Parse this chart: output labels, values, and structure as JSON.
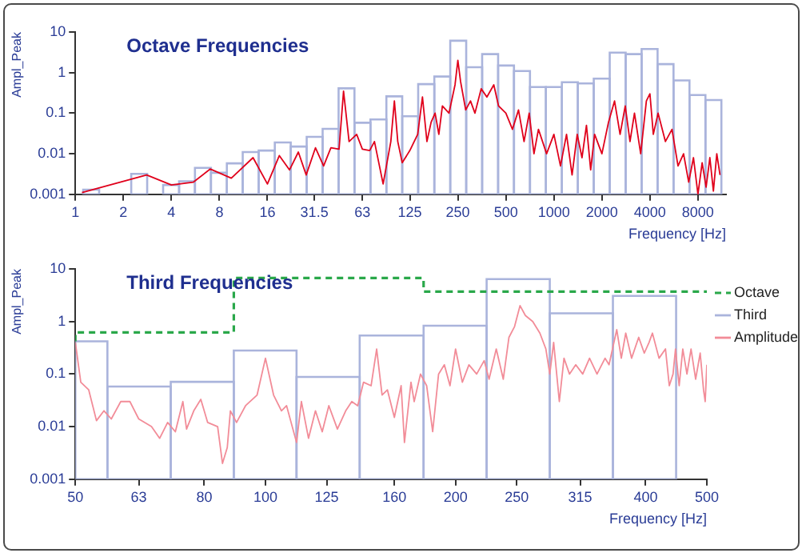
{
  "chart_data": [
    {
      "type": "histogram",
      "title": "Octave Frequencies",
      "xlabel": "Frequency [Hz]",
      "ylabel": "Ampl_Peak",
      "log": "xy",
      "grid": false,
      "legend": false,
      "xlim": [
        1,
        12000
      ],
      "xticks": [
        1,
        2,
        4,
        8,
        16,
        31.5,
        63,
        125,
        250,
        500,
        1000,
        2000,
        4000,
        8000
      ],
      "ylim": [
        0.001,
        10
      ],
      "yticks": [
        0.001,
        0.01,
        0.1,
        1,
        10
      ],
      "series": [
        {
          "color": "#aab4dc",
          "bins": [
            1.12,
            1.41,
            1.78,
            2.24,
            2.82,
            3.55,
            4.47,
            5.62,
            7.08,
            8.91,
            11.2,
            14.1,
            17.8,
            22.4,
            28.2,
            35.5,
            44.7,
            56.2,
            70.8,
            89.1,
            112,
            141,
            178,
            224,
            282,
            355,
            447,
            562,
            708,
            891,
            1122,
            1413,
            1778,
            2239,
            2818,
            3548,
            4467,
            5623,
            7079,
            8913,
            11220
          ],
          "values": [
            0.0013,
            null,
            null,
            0.0032,
            null,
            0.0017,
            0.0021,
            0.0045,
            0.0034,
            0.0058,
            0.011,
            0.012,
            0.019,
            0.015,
            0.026,
            0.041,
            0.41,
            0.058,
            0.07,
            0.26,
            0.084,
            0.52,
            0.8,
            6.1,
            1.36,
            2.85,
            1.49,
            1.09,
            0.44,
            0.44,
            0.58,
            0.54,
            0.71,
            3.1,
            2.85,
            3.8,
            1.62,
            0.64,
            0.28,
            0.21
          ]
        },
        {
          "type": "line",
          "color": "#e0001b",
          "x": [
            1.1,
            2.8,
            4,
            5.5,
            7,
            9.5,
            13,
            16,
            19,
            22,
            25,
            28,
            32,
            36,
            40,
            45,
            48,
            52,
            58,
            63,
            70,
            75,
            85,
            95,
            100,
            105,
            112,
            125,
            140,
            150,
            160,
            170,
            180,
            190,
            200,
            220,
            240,
            250,
            260,
            280,
            300,
            320,
            350,
            380,
            420,
            450,
            500,
            550,
            600,
            650,
            700,
            750,
            800,
            900,
            1000,
            1100,
            1200,
            1300,
            1400,
            1500,
            1600,
            1700,
            1800,
            2000,
            2200,
            2400,
            2600,
            2800,
            3000,
            3200,
            3500,
            3800,
            4000,
            4200,
            4500,
            5000,
            5500,
            6000,
            6500,
            7000,
            7500,
            8000,
            8500,
            9000,
            9500,
            10000,
            10500,
            11000
          ],
          "values": [
            0.0011,
            0.003,
            0.0017,
            0.002,
            0.0042,
            0.0025,
            0.008,
            0.0018,
            0.009,
            0.004,
            0.011,
            0.003,
            0.014,
            0.005,
            0.014,
            0.013,
            0.35,
            0.02,
            0.03,
            0.013,
            0.012,
            0.02,
            0.0018,
            0.02,
            0.2,
            0.02,
            0.006,
            0.012,
            0.03,
            0.25,
            0.02,
            0.06,
            0.1,
            0.03,
            0.15,
            0.1,
            0.5,
            2,
            0.6,
            0.12,
            0.2,
            0.1,
            0.4,
            0.25,
            0.5,
            0.15,
            0.1,
            0.04,
            0.12,
            0.02,
            0.1,
            0.01,
            0.04,
            0.01,
            0.03,
            0.005,
            0.03,
            0.003,
            0.03,
            0.008,
            0.05,
            0.004,
            0.03,
            0.01,
            0.06,
            0.2,
            0.03,
            0.15,
            0.02,
            0.1,
            0.01,
            0.2,
            0.3,
            0.03,
            0.1,
            0.02,
            0.04,
            0.005,
            0.01,
            0.002,
            0.008,
            0.001,
            0.006,
            0.0015,
            0.008,
            0.0012,
            0.01,
            0.003
          ]
        }
      ]
    },
    {
      "type": "histogram",
      "title": "Third Frequencies",
      "xlabel": "Frequency [Hz]",
      "ylabel": "Ampl_Peak",
      "log": "xy",
      "grid": false,
      "legend": "right",
      "xlim": [
        50,
        500
      ],
      "xticks": [
        50,
        63,
        80,
        100,
        125,
        160,
        200,
        250,
        315,
        400,
        500
      ],
      "ylim": [
        0.001,
        10
      ],
      "yticks": [
        0.001,
        0.01,
        0.1,
        1,
        10
      ],
      "series": [
        {
          "type": "step",
          "name": "Octave",
          "color": "#2aa84a",
          "line_style": "dashed",
          "x": [
            50,
            89.1,
            178,
            355,
            500
          ],
          "values": [
            0.42,
            0.62,
            6.7,
            3.7,
            3.7
          ]
        },
        {
          "name": "Third",
          "color": "#aab4dc",
          "bins": [
            50,
            56.2,
            70.8,
            89.1,
            112,
            141,
            178,
            224,
            282,
            355,
            447
          ],
          "values": [
            0.42,
            0.058,
            0.071,
            0.28,
            0.088,
            0.54,
            0.83,
            6.4,
            1.43,
            3.06
          ]
        },
        {
          "type": "line",
          "name": "Amplitude",
          "color": "#f28c98",
          "x": [
            50,
            51,
            52.5,
            54,
            55.5,
            57,
            59,
            61,
            63,
            66,
            68,
            70,
            72,
            74,
            75,
            77,
            79,
            81,
            84,
            85.5,
            87,
            88,
            90,
            93,
            97,
            100,
            103,
            106,
            108,
            112,
            114,
            117,
            120,
            123,
            126,
            130,
            134,
            137,
            140,
            143,
            147,
            150,
            153,
            156,
            160,
            164,
            166,
            170,
            172,
            176,
            180,
            184,
            188,
            192,
            196,
            200,
            205,
            210,
            216,
            222,
            226,
            232,
            238,
            243,
            248,
            253,
            258,
            265,
            272,
            278,
            282,
            286,
            292,
            297,
            303,
            310,
            318,
            326,
            335,
            345,
            350,
            360,
            366,
            372,
            380,
            390,
            398,
            405,
            410,
            420,
            430,
            436,
            442,
            446,
            452,
            458,
            465,
            472,
            480,
            488,
            494,
            497,
            500
          ],
          "values": [
            0.4,
            0.07,
            0.05,
            0.013,
            0.02,
            0.014,
            0.03,
            0.03,
            0.014,
            0.01,
            0.006,
            0.012,
            0.008,
            0.03,
            0.009,
            0.02,
            0.033,
            0.012,
            0.01,
            0.002,
            0.004,
            0.02,
            0.012,
            0.025,
            0.04,
            0.2,
            0.04,
            0.02,
            0.025,
            0.005,
            0.03,
            0.006,
            0.02,
            0.008,
            0.025,
            0.009,
            0.02,
            0.03,
            0.025,
            0.07,
            0.06,
            0.3,
            0.04,
            0.05,
            0.015,
            0.06,
            0.005,
            0.07,
            0.03,
            0.1,
            0.06,
            0.008,
            0.1,
            0.15,
            0.06,
            0.3,
            0.07,
            0.15,
            0.1,
            0.18,
            0.08,
            0.3,
            0.08,
            0.5,
            0.8,
            2,
            1.3,
            1,
            0.6,
            0.3,
            0.1,
            0.4,
            0.03,
            0.2,
            0.1,
            0.15,
            0.1,
            0.2,
            0.1,
            0.2,
            0.15,
            0.7,
            0.2,
            0.6,
            0.2,
            0.5,
            0.25,
            0.4,
            0.6,
            0.2,
            0.3,
            0.06,
            0.1,
            0.3,
            0.06,
            0.3,
            0.1,
            0.3,
            0.08,
            0.25,
            0.05,
            0.03,
            0.15
          ]
        }
      ]
    }
  ]
}
